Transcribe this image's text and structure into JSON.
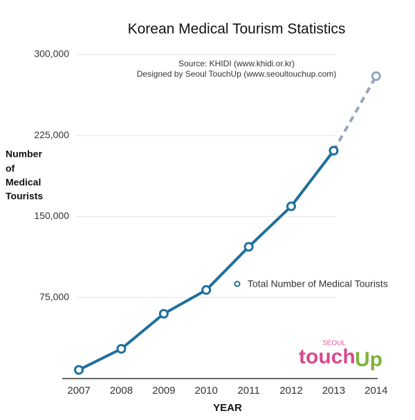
{
  "chart_data": {
    "type": "line",
    "title": "Korean Medical Tourism Statistics",
    "source_lines": [
      "Source: KHIDI (www.khidi.or.kr)",
      "Designed by Seoul TouchUp (www.seoultouchup.com)"
    ],
    "ylabel_lines": [
      "Number",
      "of",
      "Medical",
      "Tourists"
    ],
    "xlabel": "YEAR",
    "categories": [
      "2007",
      "2008",
      "2009",
      "2010",
      "2011",
      "2012",
      "2013",
      "2014"
    ],
    "series": [
      {
        "name": "Total Number of Medical Tourists",
        "color": "#1f6f9c",
        "values": [
          8000,
          27500,
          60000,
          82000,
          122000,
          159500,
          211000,
          280000
        ],
        "projected": [
          false,
          false,
          false,
          false,
          false,
          false,
          false,
          true
        ],
        "projected_color": "#93a6bf"
      }
    ],
    "ylim": [
      0,
      300000
    ],
    "yticks": [
      {
        "value": 75000,
        "label": "75,000"
      },
      {
        "value": 150000,
        "label": "150,000"
      },
      {
        "value": 225000,
        "label": "225,000"
      },
      {
        "value": 300000,
        "label": "300,000"
      }
    ],
    "grid": true,
    "logo": {
      "small": "SEOUL",
      "main": "touch",
      "accent": "Up"
    }
  }
}
